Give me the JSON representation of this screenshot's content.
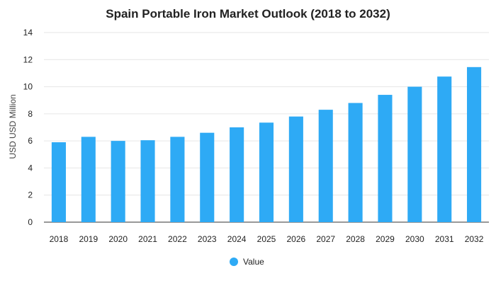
{
  "chart_data": {
    "type": "bar",
    "title": "Spain Portable Iron Market Outlook (2018 to 2032)",
    "ylabel": "USD USD Million",
    "xlabel": "",
    "categories": [
      "2018",
      "2019",
      "2020",
      "2021",
      "2022",
      "2023",
      "2024",
      "2025",
      "2026",
      "2027",
      "2028",
      "2029",
      "2030",
      "2031",
      "2032"
    ],
    "series": [
      {
        "name": "Value",
        "values": [
          5.9,
          6.3,
          6.0,
          6.05,
          6.3,
          6.6,
          7.0,
          7.35,
          7.8,
          8.3,
          8.8,
          9.4,
          10.0,
          10.75,
          11.45
        ]
      }
    ],
    "ylim": [
      0,
      14
    ],
    "yticks": [
      0,
      2,
      4,
      6,
      8,
      10,
      12,
      14
    ],
    "grid": true,
    "legend_position": "bottom-center",
    "colors": {
      "bar": "#2eaaf5"
    }
  }
}
